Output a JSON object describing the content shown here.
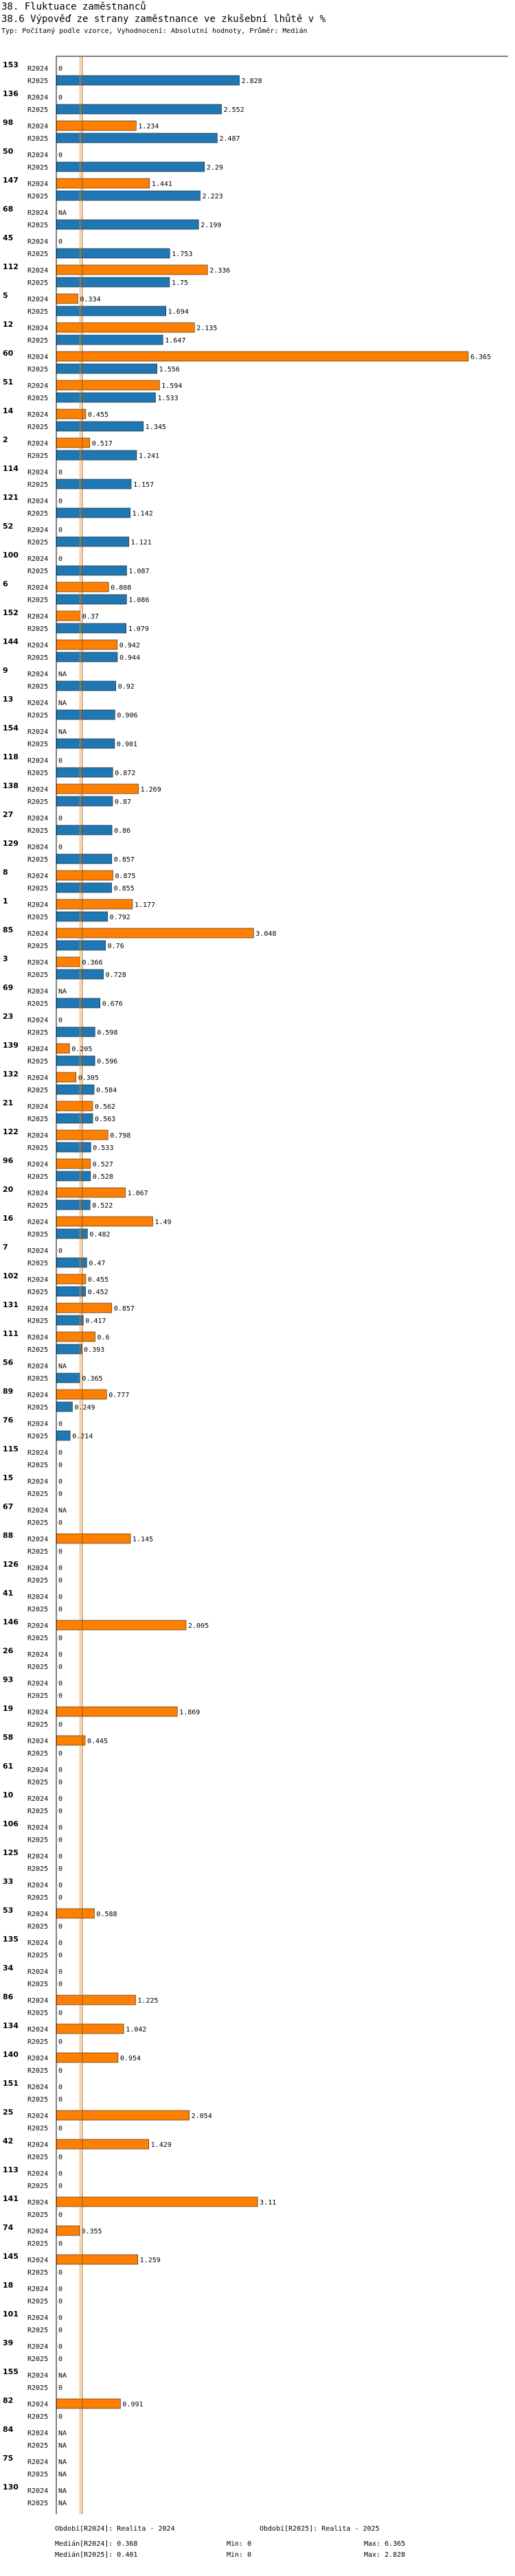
{
  "header": {
    "title": "38. Fluktuace zaměstnanců",
    "subtitle": "38.6 Výpověď ze strany zaměstnance ve zkušební lhůtě v %",
    "info": "Typ: Počítaný podle vzorce, Vyhodnocení: Absolutní hodnoty, Průměr: Medián"
  },
  "footer": {
    "legend1": "Období[R2024]: Realita - 2024",
    "legend2": "Období[R2025]: Realita - 2025",
    "row1": {
      "median": "Medián[R2024]: 0.368",
      "min": "Min: 0",
      "max": "Max: 6.365"
    },
    "row2": {
      "median": "Medián[R2025]: 0.401",
      "min": "Min: 0",
      "max": "Max: 2.828"
    }
  },
  "chart_data": {
    "type": "bar",
    "orientation": "horizontal",
    "title": "38.6 Výpověď ze strany zaměstnance ve zkušební lhůtě v %",
    "xlim": [
      0,
      6.365
    ],
    "reference_lines": {
      "median_R2024": 0.368,
      "median_R2025": 0.401
    },
    "series": [
      {
        "name": "R2024",
        "label": "Období[R2024]: Realita - 2024",
        "color": "#ff8000",
        "median": 0.368,
        "min": 0,
        "max": 6.365
      },
      {
        "name": "R2025",
        "label": "Období[R2025]: Realita - 2025",
        "color": "#1f77b4",
        "median": 0.401,
        "min": 0,
        "max": 2.828
      }
    ],
    "groups": [
      {
        "id": "153",
        "R2024": "0",
        "R2025": "2.828"
      },
      {
        "id": "136",
        "R2024": "0",
        "R2025": "2.552"
      },
      {
        "id": "98",
        "R2024": "1.234",
        "R2025": "2.487"
      },
      {
        "id": "50",
        "R2024": "0",
        "R2025": "2.29"
      },
      {
        "id": "147",
        "R2024": "1.441",
        "R2025": "2.223"
      },
      {
        "id": "68",
        "R2024": "NA",
        "R2025": "2.199"
      },
      {
        "id": "45",
        "R2024": "0",
        "R2025": "1.753"
      },
      {
        "id": "112",
        "R2024": "2.336",
        "R2025": "1.75"
      },
      {
        "id": "5",
        "R2024": "0.334",
        "R2025": "1.694"
      },
      {
        "id": "12",
        "R2024": "2.135",
        "R2025": "1.647"
      },
      {
        "id": "60",
        "R2024": "6.365",
        "R2025": "1.556"
      },
      {
        "id": "51",
        "R2024": "1.594",
        "R2025": "1.533"
      },
      {
        "id": "14",
        "R2024": "0.455",
        "R2025": "1.345"
      },
      {
        "id": "2",
        "R2024": "0.517",
        "R2025": "1.241"
      },
      {
        "id": "114",
        "R2024": "0",
        "R2025": "1.157"
      },
      {
        "id": "121",
        "R2024": "0",
        "R2025": "1.142"
      },
      {
        "id": "52",
        "R2024": "0",
        "R2025": "1.121"
      },
      {
        "id": "100",
        "R2024": "0",
        "R2025": "1.087"
      },
      {
        "id": "6",
        "R2024": "0.808",
        "R2025": "1.086"
      },
      {
        "id": "152",
        "R2024": "0.37",
        "R2025": "1.079"
      },
      {
        "id": "144",
        "R2024": "0.942",
        "R2025": "0.944"
      },
      {
        "id": "9",
        "R2024": "NA",
        "R2025": "0.92"
      },
      {
        "id": "13",
        "R2024": "NA",
        "R2025": "0.906"
      },
      {
        "id": "154",
        "R2024": "NA",
        "R2025": "0.901"
      },
      {
        "id": "118",
        "R2024": "0",
        "R2025": "0.872"
      },
      {
        "id": "138",
        "R2024": "1.269",
        "R2025": "0.87"
      },
      {
        "id": "27",
        "R2024": "0",
        "R2025": "0.86"
      },
      {
        "id": "129",
        "R2024": "0",
        "R2025": "0.857"
      },
      {
        "id": "8",
        "R2024": "0.875",
        "R2025": "0.855"
      },
      {
        "id": "1",
        "R2024": "1.177",
        "R2025": "0.792"
      },
      {
        "id": "85",
        "R2024": "3.048",
        "R2025": "0.76"
      },
      {
        "id": "3",
        "R2024": "0.366",
        "R2025": "0.728"
      },
      {
        "id": "69",
        "R2024": "NA",
        "R2025": "0.676"
      },
      {
        "id": "23",
        "R2024": "0",
        "R2025": "0.598"
      },
      {
        "id": "139",
        "R2024": "0.205",
        "R2025": "0.596"
      },
      {
        "id": "132",
        "R2024": "0.305",
        "R2025": "0.584"
      },
      {
        "id": "21",
        "R2024": "0.562",
        "R2025": "0.563"
      },
      {
        "id": "122",
        "R2024": "0.798",
        "R2025": "0.533"
      },
      {
        "id": "96",
        "R2024": "0.527",
        "R2025": "0.528"
      },
      {
        "id": "20",
        "R2024": "1.067",
        "R2025": "0.522"
      },
      {
        "id": "16",
        "R2024": "1.49",
        "R2025": "0.482"
      },
      {
        "id": "7",
        "R2024": "0",
        "R2025": "0.47"
      },
      {
        "id": "102",
        "R2024": "0.455",
        "R2025": "0.452"
      },
      {
        "id": "131",
        "R2024": "0.857",
        "R2025": "0.417"
      },
      {
        "id": "111",
        "R2024": "0.6",
        "R2025": "0.393"
      },
      {
        "id": "56",
        "R2024": "NA",
        "R2025": "0.365"
      },
      {
        "id": "89",
        "R2024": "0.777",
        "R2025": "0.249"
      },
      {
        "id": "76",
        "R2024": "0",
        "R2025": "0.214"
      },
      {
        "id": "115",
        "R2024": "0",
        "R2025": "0"
      },
      {
        "id": "15",
        "R2024": "0",
        "R2025": "0"
      },
      {
        "id": "67",
        "R2024": "NA",
        "R2025": "0"
      },
      {
        "id": "88",
        "R2024": "1.145",
        "R2025": "0"
      },
      {
        "id": "126",
        "R2024": "0",
        "R2025": "0"
      },
      {
        "id": "41",
        "R2024": "0",
        "R2025": "0"
      },
      {
        "id": "146",
        "R2024": "2.005",
        "R2025": "0"
      },
      {
        "id": "26",
        "R2024": "0",
        "R2025": "0"
      },
      {
        "id": "93",
        "R2024": "0",
        "R2025": "0"
      },
      {
        "id": "19",
        "R2024": "1.869",
        "R2025": "0"
      },
      {
        "id": "58",
        "R2024": "0.445",
        "R2025": "0"
      },
      {
        "id": "61",
        "R2024": "0",
        "R2025": "0"
      },
      {
        "id": "10",
        "R2024": "0",
        "R2025": "0"
      },
      {
        "id": "106",
        "R2024": "0",
        "R2025": "0"
      },
      {
        "id": "125",
        "R2024": "0",
        "R2025": "0"
      },
      {
        "id": "33",
        "R2024": "0",
        "R2025": "0"
      },
      {
        "id": "53",
        "R2024": "0.588",
        "R2025": "0"
      },
      {
        "id": "135",
        "R2024": "0",
        "R2025": "0"
      },
      {
        "id": "34",
        "R2024": "0",
        "R2025": "0"
      },
      {
        "id": "86",
        "R2024": "1.225",
        "R2025": "0"
      },
      {
        "id": "134",
        "R2024": "1.042",
        "R2025": "0"
      },
      {
        "id": "140",
        "R2024": "0.954",
        "R2025": "0"
      },
      {
        "id": "151",
        "R2024": "0",
        "R2025": "0"
      },
      {
        "id": "25",
        "R2024": "2.054",
        "R2025": "0"
      },
      {
        "id": "42",
        "R2024": "1.429",
        "R2025": "0"
      },
      {
        "id": "113",
        "R2024": "0",
        "R2025": "0"
      },
      {
        "id": "141",
        "R2024": "3.11",
        "R2025": "0"
      },
      {
        "id": "74",
        "R2024": "0.355",
        "R2025": "0"
      },
      {
        "id": "145",
        "R2024": "1.259",
        "R2025": "0"
      },
      {
        "id": "18",
        "R2024": "0",
        "R2025": "0"
      },
      {
        "id": "101",
        "R2024": "0",
        "R2025": "0"
      },
      {
        "id": "39",
        "R2024": "0",
        "R2025": "0"
      },
      {
        "id": "155",
        "R2024": "NA",
        "R2025": "0"
      },
      {
        "id": "82",
        "R2024": "0.991",
        "R2025": "0"
      },
      {
        "id": "84",
        "R2024": "NA",
        "R2025": "NA"
      },
      {
        "id": "75",
        "R2024": "NA",
        "R2025": "NA"
      },
      {
        "id": "130",
        "R2024": "NA",
        "R2025": "NA"
      }
    ]
  }
}
